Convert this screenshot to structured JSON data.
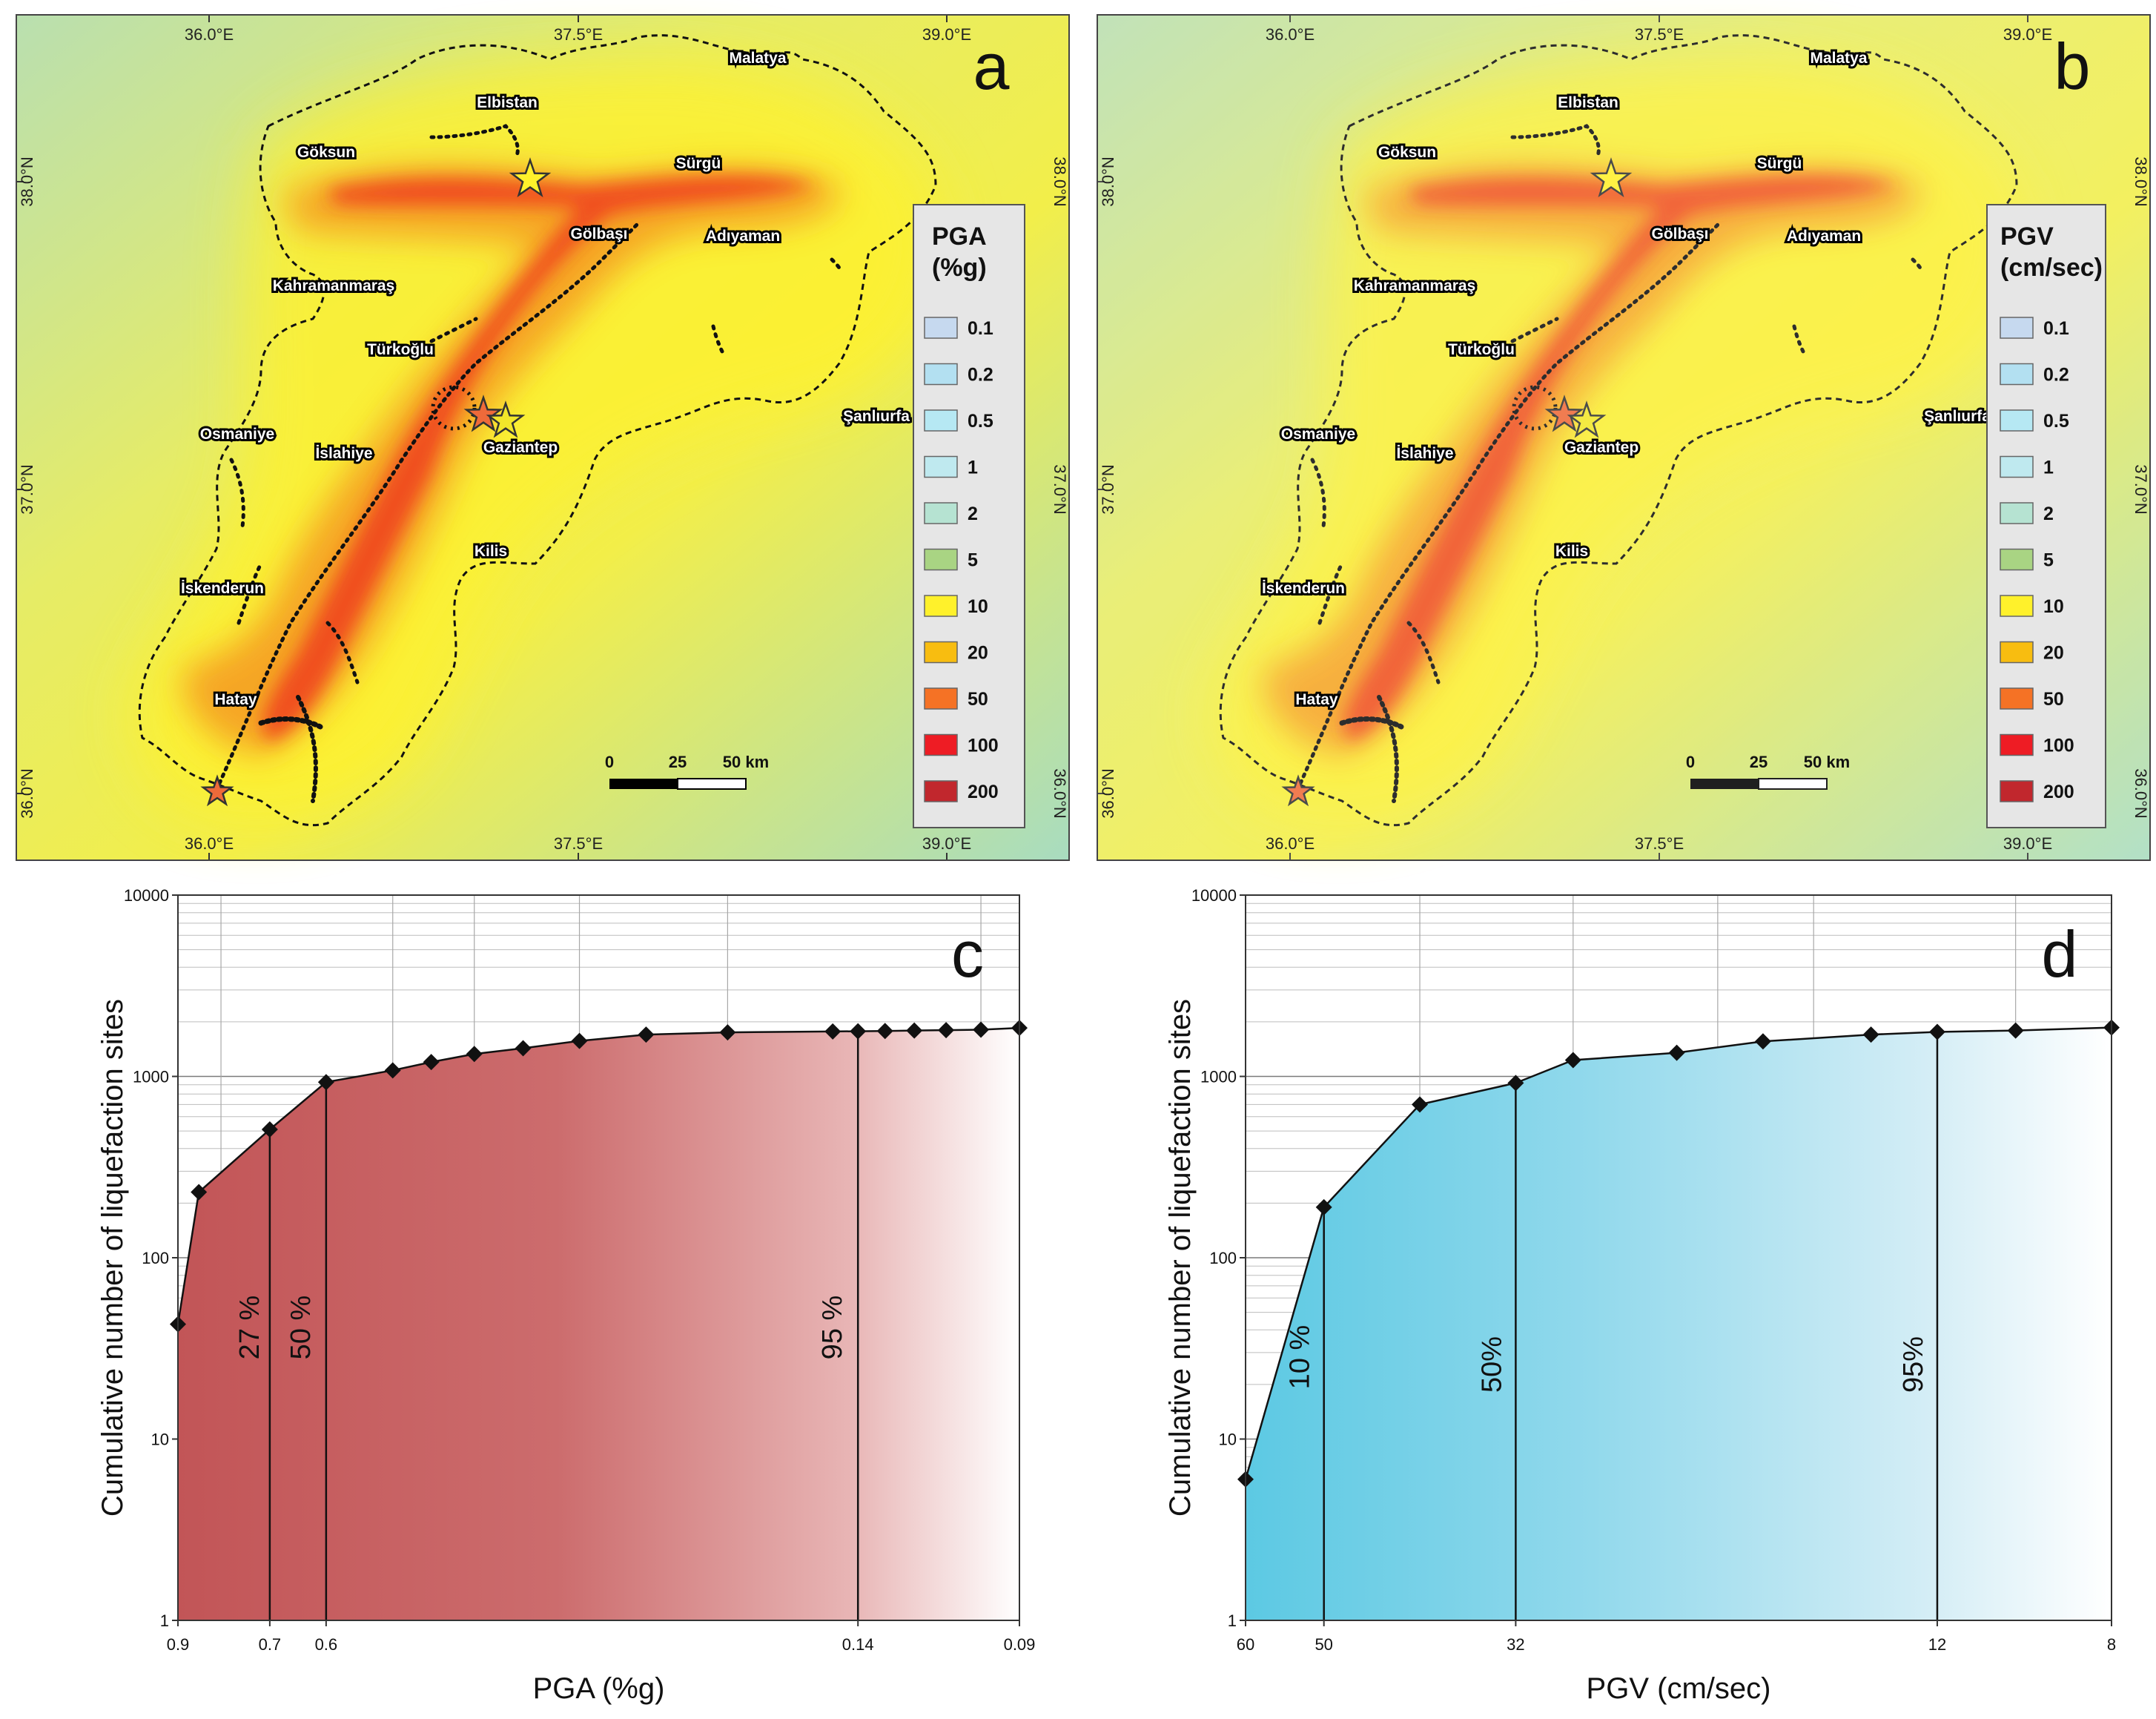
{
  "map_a": {
    "panel_label": "a",
    "legend_title_1": "PGA",
    "legend_title_2": "(%g)",
    "legend": [
      {
        "label": "0.1",
        "color": "#c6d9ef"
      },
      {
        "label": "0.2",
        "color": "#b3e0f1"
      },
      {
        "label": "0.5",
        "color": "#b6e8f3"
      },
      {
        "label": "1",
        "color": "#bfe9ef"
      },
      {
        "label": "2",
        "color": "#b6e3d2"
      },
      {
        "label": "5",
        "color": "#a9d483"
      },
      {
        "label": "10",
        "color": "#fff12b"
      },
      {
        "label": "20",
        "color": "#f8bd10"
      },
      {
        "label": "50",
        "color": "#f57225"
      },
      {
        "label": "100",
        "color": "#ee1c24"
      },
      {
        "label": "200",
        "color": "#c1272d"
      }
    ],
    "scale": [
      "0",
      "25",
      "50 km"
    ],
    "lon_ticks": [
      "36.0°E",
      "37.5°E",
      "39.0°E"
    ],
    "lat_ticks": [
      "38.0°N",
      "37.0°N",
      "36.0°N"
    ]
  },
  "map_b": {
    "panel_label": "b",
    "legend_title_1": "PGV",
    "legend_title_2": "(cm/sec)",
    "legend": [
      {
        "label": "0.1",
        "color": "#c6d9ef"
      },
      {
        "label": "0.2",
        "color": "#b3e0f1"
      },
      {
        "label": "0.5",
        "color": "#b6e8f3"
      },
      {
        "label": "1",
        "color": "#bfe9ef"
      },
      {
        "label": "2",
        "color": "#b6e3d2"
      },
      {
        "label": "5",
        "color": "#a9d483"
      },
      {
        "label": "10",
        "color": "#fff12b"
      },
      {
        "label": "20",
        "color": "#f8bd10"
      },
      {
        "label": "50",
        "color": "#f57225"
      },
      {
        "label": "100",
        "color": "#ee1c24"
      },
      {
        "label": "200",
        "color": "#c1272d"
      }
    ],
    "scale": [
      "0",
      "25",
      "50 km"
    ],
    "lon_ticks": [
      "36.0°E",
      "37.5°E",
      "39.0°E"
    ],
    "lat_ticks": [
      "38.0°N",
      "37.0°N",
      "36.0°N"
    ]
  },
  "cities": [
    {
      "name": "Malatya"
    },
    {
      "name": "Elbistan"
    },
    {
      "name": "Göksun"
    },
    {
      "name": "Sürgü"
    },
    {
      "name": "Gölbaşı"
    },
    {
      "name": "Adıyaman"
    },
    {
      "name": "Kahramanmaraş"
    },
    {
      "name": "Türkoğlu"
    },
    {
      "name": "Şanlıurfa"
    },
    {
      "name": "Osmaniye"
    },
    {
      "name": "İslahiye"
    },
    {
      "name": "Gaziantep"
    },
    {
      "name": "Kilis"
    },
    {
      "name": "İskenderun"
    },
    {
      "name": "Hatay"
    }
  ],
  "chart_data": [
    {
      "type": "line",
      "panel_label": "c",
      "xlabel": "PGA (%g)",
      "ylabel": "Cumulative number of liquefaction sites",
      "x_ticks": [
        "0.9",
        "0.7",
        "0.6",
        "0.14",
        "0.09"
      ],
      "y_ticks": [
        "1",
        "10",
        "100",
        "1000",
        "10000"
      ],
      "y_scale": "log",
      "ylim": [
        1,
        10000
      ],
      "xlim": [
        0.9,
        0.09
      ],
      "x": [
        0.9,
        0.85,
        0.7,
        0.6,
        0.5,
        0.45,
        0.4,
        0.35,
        0.3,
        0.25,
        0.2,
        0.15,
        0.14,
        0.13,
        0.12,
        0.11,
        0.1,
        0.09
      ],
      "y": [
        43,
        230,
        510,
        930,
        1080,
        1200,
        1330,
        1430,
        1570,
        1700,
        1750,
        1770,
        1775,
        1780,
        1790,
        1800,
        1810,
        1850
      ],
      "percentiles": [
        {
          "label": "27 %",
          "x": 0.7
        },
        {
          "label": "50 %",
          "x": 0.6
        },
        {
          "label": "95 %",
          "x": 0.14
        }
      ],
      "fill_color": "#c25557"
    },
    {
      "type": "line",
      "panel_label": "d",
      "xlabel": "PGV (cm/sec)",
      "ylabel": "Cumulative number of liquefaction sites",
      "x_ticks": [
        "60",
        "50",
        "32",
        "12",
        "8"
      ],
      "y_ticks": [
        "1",
        "10",
        "100",
        "1000",
        "10000"
      ],
      "y_scale": "log",
      "ylim": [
        1,
        10000
      ],
      "xlim": [
        60,
        8
      ],
      "x": [
        60,
        50,
        40,
        32,
        28,
        22,
        18,
        14,
        12,
        10,
        8
      ],
      "y": [
        6,
        190,
        700,
        920,
        1230,
        1350,
        1560,
        1700,
        1760,
        1790,
        1860
      ],
      "percentiles": [
        {
          "label": "10 %",
          "x": 50
        },
        {
          "label": "50%",
          "x": 32
        },
        {
          "label": "95%",
          "x": 12
        }
      ],
      "fill_color": "#5cc9e3"
    }
  ]
}
